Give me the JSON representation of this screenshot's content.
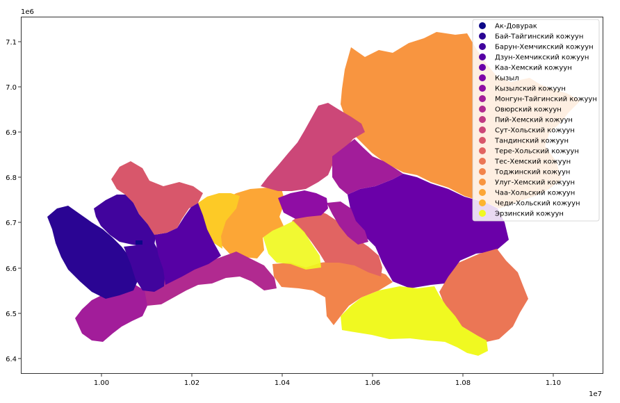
{
  "axes": {
    "y_multiplier": "1e6",
    "x_multiplier": "1e7",
    "x_ticks": [
      "1.00",
      "1.02",
      "1.04",
      "1.06",
      "1.08",
      "1.10"
    ],
    "y_ticks": [
      "6.4",
      "6.5",
      "6.6",
      "6.7",
      "6.8",
      "6.9",
      "7.0",
      "7.1"
    ]
  },
  "chart_data": {
    "type": "choropleth",
    "colormap": "plasma",
    "x_range": [
      9840000,
      11110000
    ],
    "y_range": [
      6365000,
      7155000
    ],
    "legend_position": "top-right",
    "grid": false,
    "regions": [
      {
        "name": "Ак-Довурак",
        "color": "#0d0887"
      },
      {
        "name": "Бай-Тайгинский кожуун",
        "color": "#2a0593"
      },
      {
        "name": "Барун-Хемчикский кожуун",
        "color": "#41049d"
      },
      {
        "name": "Дзун-Хемчикский кожуун",
        "color": "#5601a4"
      },
      {
        "name": "Каа-Хемский кожуун",
        "color": "#6a00a8"
      },
      {
        "name": "Кызыл",
        "color": "#7e03a8"
      },
      {
        "name": "Кызылский кожуун",
        "color": "#8f0da4"
      },
      {
        "name": "Монгун-Тайгинский кожуун",
        "color": "#a21d9a"
      },
      {
        "name": "Овюрский кожуун",
        "color": "#b12a90"
      },
      {
        "name": "Пий-Хемский кожуун",
        "color": "#c03a83"
      },
      {
        "name": "Сут-Хольский кожуун",
        "color": "#cc4778"
      },
      {
        "name": "Тандинский кожуун",
        "color": "#d8576b"
      },
      {
        "name": "Тере-Хольский кожуун",
        "color": "#e16462"
      },
      {
        "name": "Тес-Хемский кожуун",
        "color": "#eb7655"
      },
      {
        "name": "Тоджинский кожуун",
        "color": "#f2844b"
      },
      {
        "name": "Улуг-Хемский кожуун",
        "color": "#f89540"
      },
      {
        "name": "Чаа-Хольский кожуун",
        "color": "#fca636"
      },
      {
        "name": "Чеди-Хольский кожуун",
        "color": "#fdb42f"
      },
      {
        "name": "Эрзинский кожуун",
        "color": "#f0f921"
      }
    ]
  }
}
